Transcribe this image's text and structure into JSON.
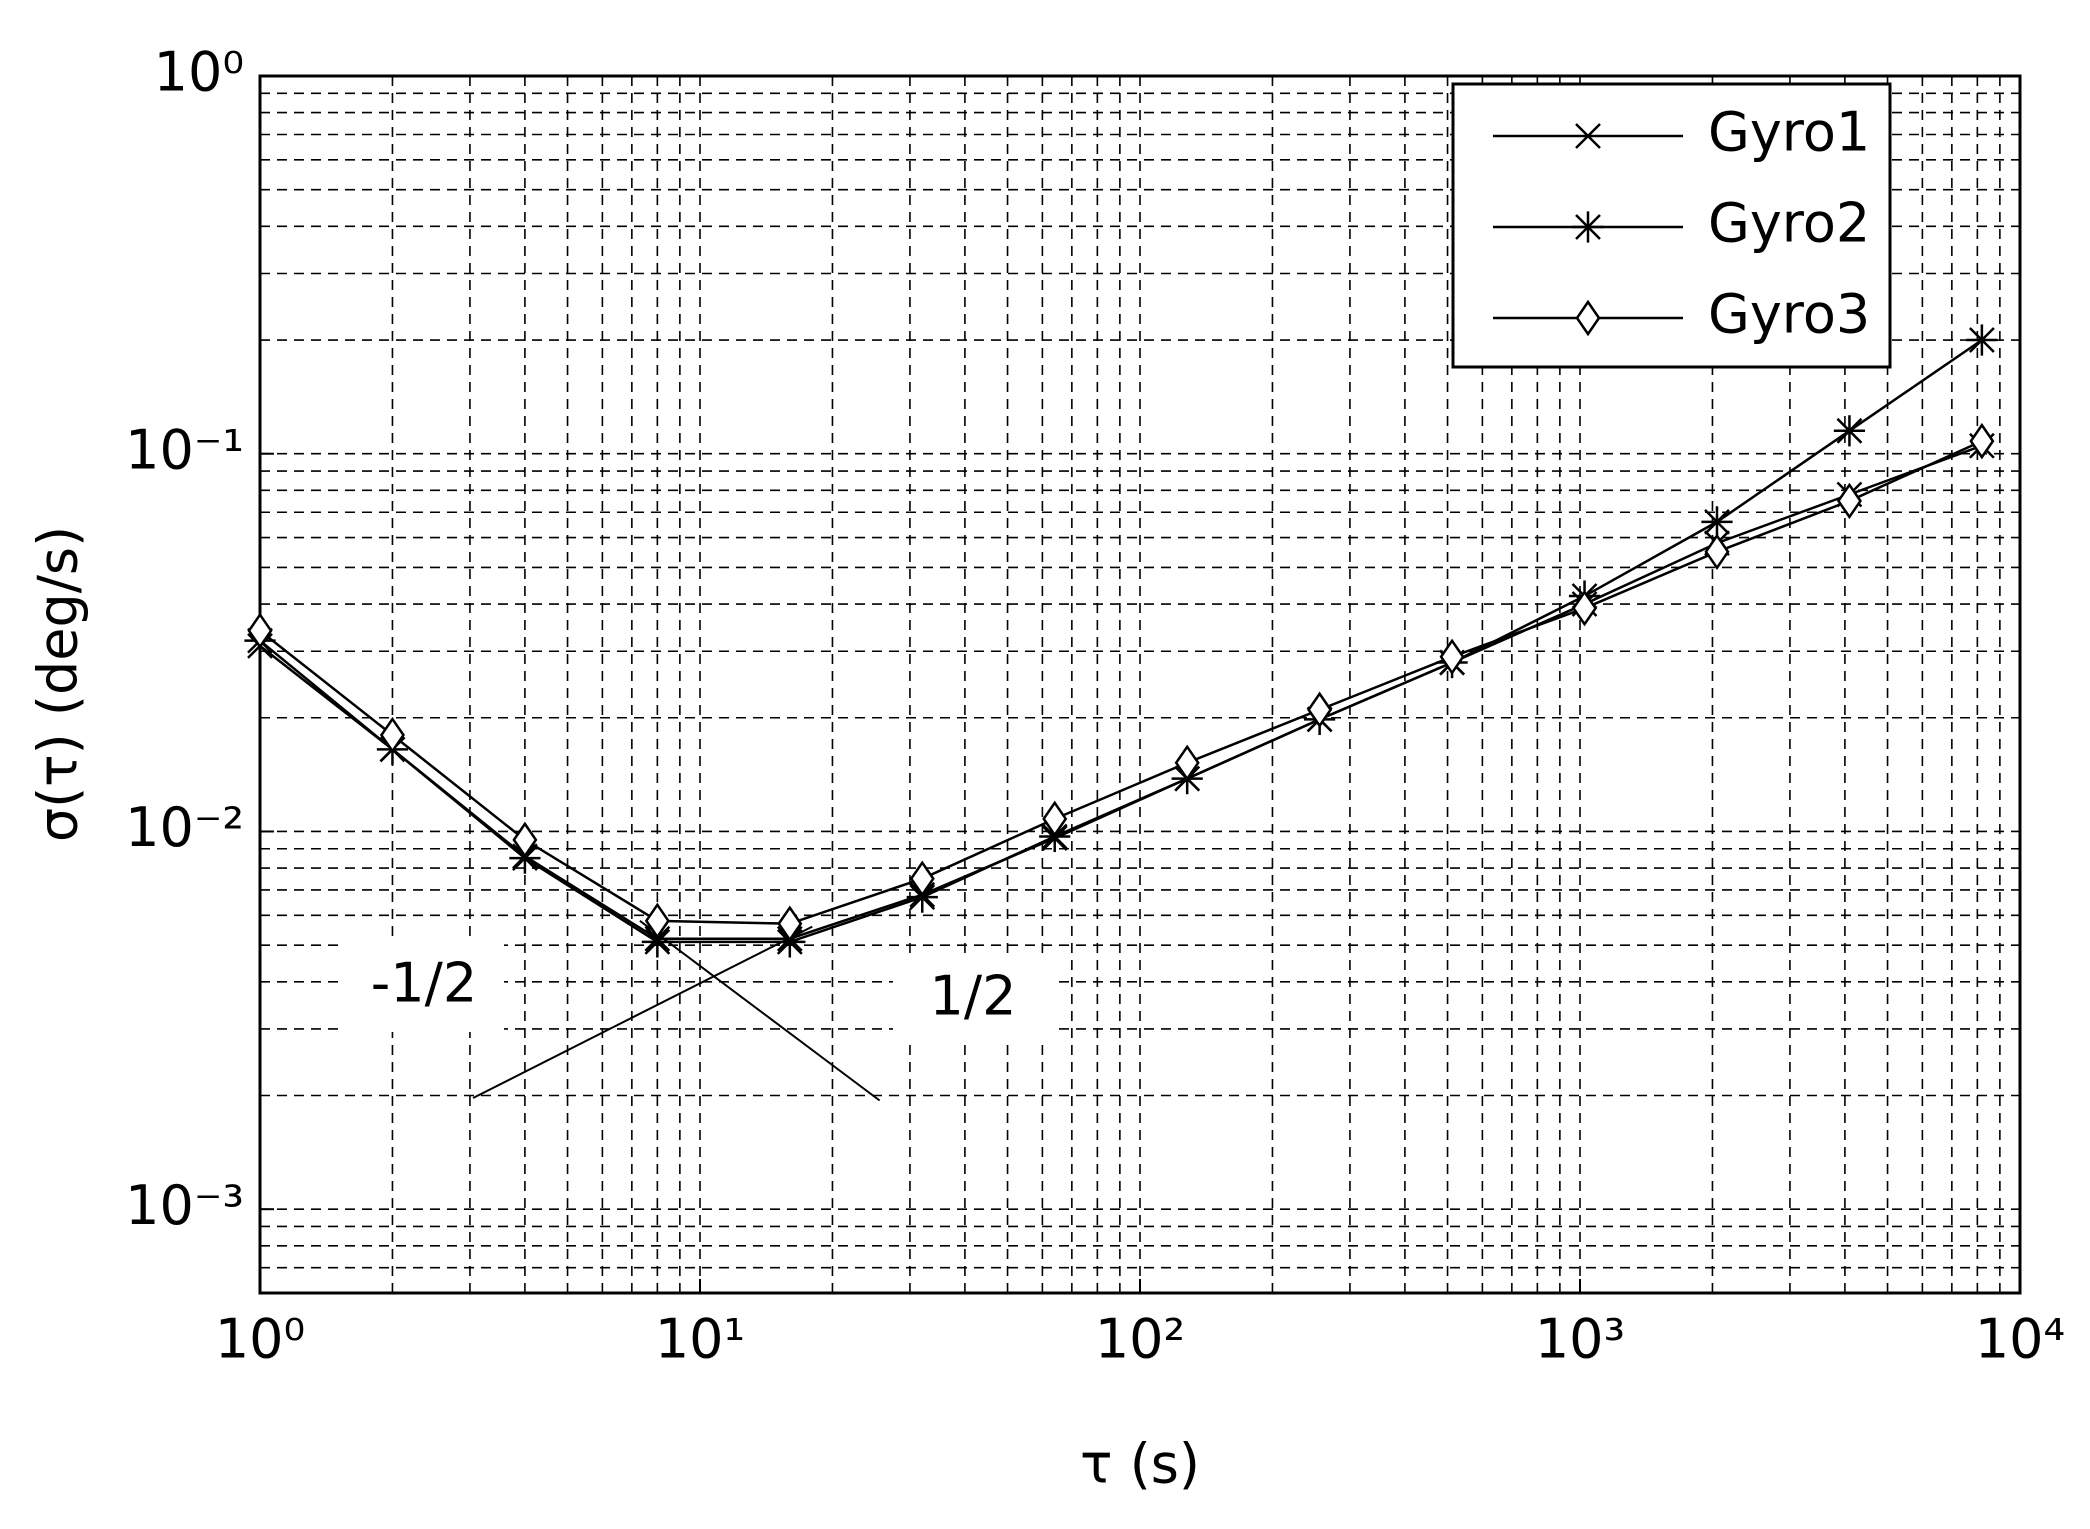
{
  "chart_data": {
    "type": "line",
    "xlabel": "τ (s)",
    "ylabel": "σ(τ) (deg/s)",
    "xscale": "log",
    "yscale": "log",
    "grid": true,
    "minor_grid": true,
    "legend": "upper right",
    "x": [
      1,
      2,
      4,
      8,
      16,
      32,
      64,
      128,
      256,
      512,
      1024,
      2048,
      4096,
      8192
    ],
    "series": [
      {
        "name": "Gyro1",
        "color": "#000000",
        "marker": "x",
        "values": [
          0.031,
          0.0165,
          0.0086,
          0.0052,
          0.0052,
          0.0068,
          0.0096,
          0.0138,
          0.0198,
          0.028,
          0.04,
          0.058,
          0.078,
          0.105
        ]
      },
      {
        "name": "Gyro2",
        "color": "#000000",
        "marker": "*",
        "values": [
          0.032,
          0.0165,
          0.0085,
          0.0051,
          0.0051,
          0.0067,
          0.0097,
          0.0138,
          0.0198,
          0.028,
          0.042,
          0.066,
          0.115,
          0.2
        ]
      },
      {
        "name": "Gyro3",
        "color": "#000000",
        "marker": "diamond",
        "values": [
          0.034,
          0.018,
          0.0095,
          0.0058,
          0.0057,
          0.0075,
          0.0108,
          0.0152,
          0.021,
          0.029,
          0.039,
          0.055,
          0.075,
          0.108
        ]
      }
    ],
    "reference_lines": [
      {
        "label": "-1/2",
        "x": [
          7.3,
          25.6
        ],
        "values": [
          0.0058,
          0.00194
        ]
      },
      {
        "label": "1/2",
        "x": [
          3.05,
          18
        ],
        "values": [
          0.00197,
          0.0056
        ]
      }
    ],
    "xlim": [
      1,
      10000
    ],
    "ylim": [
      0.0006,
      1
    ],
    "xticks": [
      {
        "value": 1,
        "label": "10⁰"
      },
      {
        "value": 10,
        "label": "10¹"
      },
      {
        "value": 100,
        "label": "10²"
      },
      {
        "value": 1000,
        "label": "10³"
      },
      {
        "value": 10000,
        "label": "10⁴"
      }
    ],
    "yticks": [
      {
        "value": 0.001,
        "label": "10⁻³"
      },
      {
        "value": 0.01,
        "label": "10⁻²"
      },
      {
        "value": 0.1,
        "label": "10⁻¹"
      },
      {
        "value": 1,
        "label": "10⁰"
      }
    ]
  }
}
